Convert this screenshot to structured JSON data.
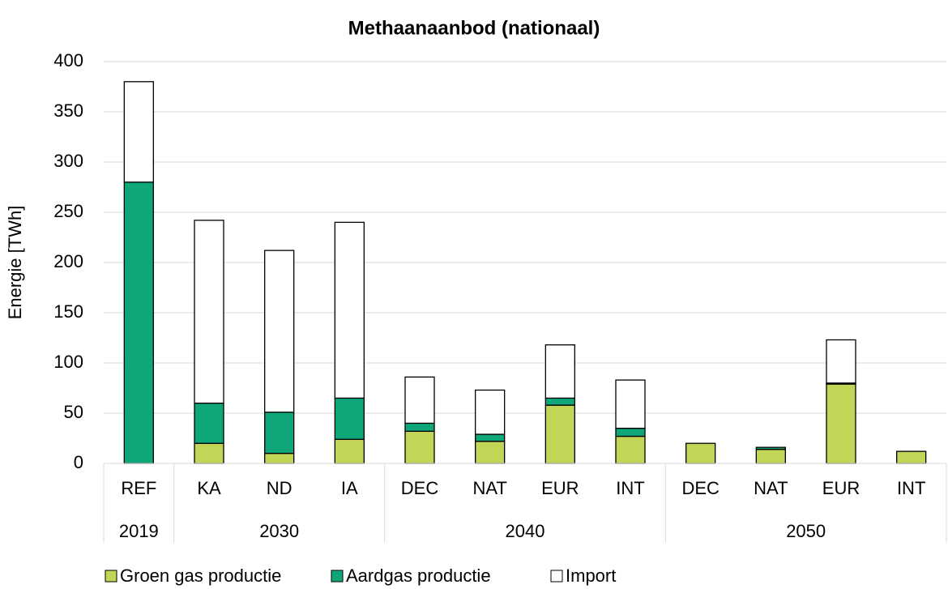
{
  "chart_data": {
    "type": "stacked_bar",
    "title": "Methaanaanbod (nationaal)",
    "y_label": "Energie [TWh]",
    "groups": [
      {
        "name": "2019",
        "categories": [
          "REF"
        ]
      },
      {
        "name": "2030",
        "categories": [
          "KA",
          "ND",
          "IA"
        ]
      },
      {
        "name": "2040",
        "categories": [
          "DEC",
          "NAT",
          "EUR",
          "INT"
        ]
      },
      {
        "name": "2050",
        "categories": [
          "DEC",
          "NAT",
          "EUR",
          "INT"
        ]
      }
    ],
    "series": [
      {
        "name": "Groen gas productie",
        "color": "#c3d557",
        "values": [
          0,
          20,
          10,
          24,
          32,
          22,
          58,
          27,
          20,
          14,
          79,
          12
        ]
      },
      {
        "name": "Aardgas productie",
        "color": "#0fa77a",
        "values": [
          280,
          40,
          41,
          41,
          8,
          7,
          7,
          8,
          0,
          2,
          1,
          0
        ]
      },
      {
        "name": "Import",
        "color": "#ffffff",
        "values": [
          100,
          182,
          161,
          175,
          46,
          44,
          53,
          48,
          0,
          0,
          43,
          0
        ]
      }
    ],
    "ylim": [
      0,
      400
    ],
    "yticks": [
      0,
      50,
      100,
      150,
      200,
      250,
      300,
      350,
      400
    ],
    "grid": true,
    "legend": "bottom"
  }
}
